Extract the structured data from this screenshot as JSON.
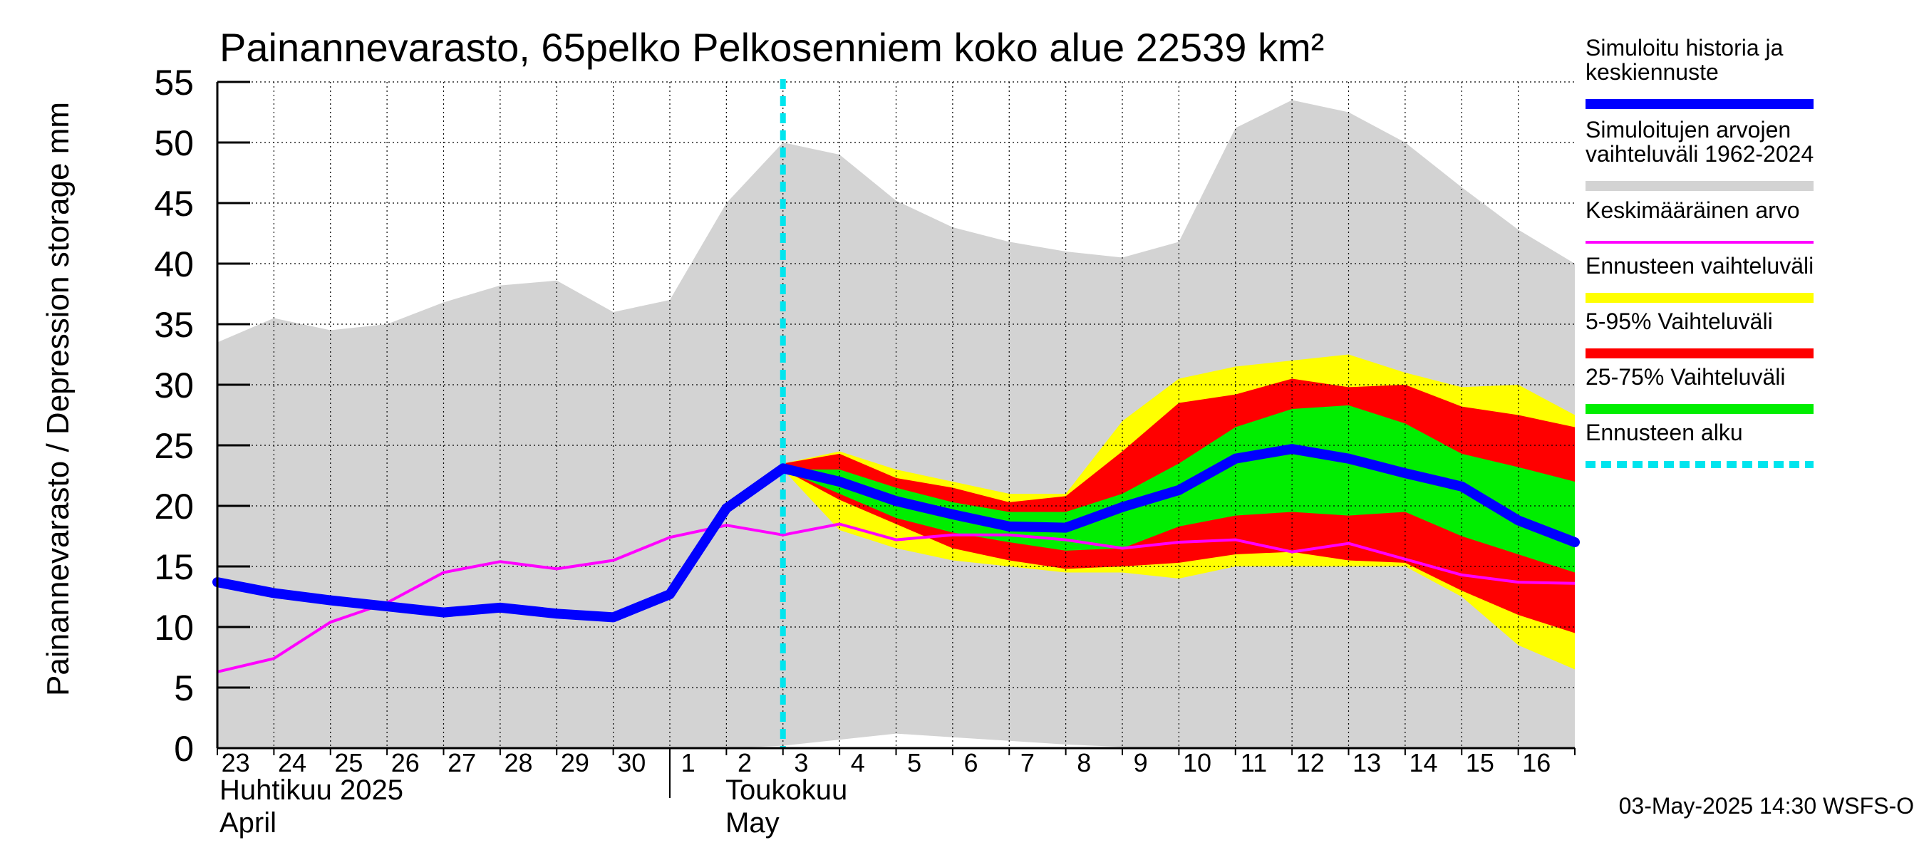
{
  "chart_data": {
    "type": "area",
    "title": "Painannevarasto, 65pelko Pelkosenniem koko alue 22539 km²",
    "ylabel": "Painannevarasto / Depression storage    mm",
    "ylim": [
      0,
      55
    ],
    "yticks": [
      "0",
      "5",
      "10",
      "15",
      "20",
      "25",
      "30",
      "35",
      "40",
      "45",
      "50",
      "55"
    ],
    "xlim": [
      0,
      24
    ],
    "xticks": [
      "23",
      "24",
      "25",
      "26",
      "27",
      "28",
      "29",
      "30",
      "1",
      "2",
      "3",
      "4",
      "5",
      "6",
      "7",
      "8",
      "9",
      "10",
      "11",
      "12",
      "13",
      "14",
      "15",
      "16"
    ],
    "month_labels": {
      "april_fi": "Huhtikuu  2025",
      "april_en": "April",
      "may_fi": "Toukokuu",
      "may_en": "May"
    },
    "grid": true,
    "legend_position": "right",
    "forecast_start_x": 10,
    "timestamp": "03-May-2025 14:30 WSFS-O",
    "colors": {
      "history": "#0000ff",
      "sim_range": "#d3d3d3",
      "mean": "#ff00ff",
      "forecast_range": "#ffff00",
      "range_5_95": "#ff0000",
      "range_25_75": "#00ee00",
      "forecast_start": "#00e5ee"
    },
    "legend": [
      {
        "label": "Simuloitu historia ja keskiennuste",
        "color": "#0000ff",
        "style": "solid"
      },
      {
        "label": "Simuloitujen arvojen vaihteluväli 1962-2024",
        "color": "#d3d3d3",
        "style": "solid"
      },
      {
        "label": "Keskimääräinen arvo",
        "color": "#ff00ff",
        "style": "thin"
      },
      {
        "label": "Ennusteen vaihteluväli",
        "color": "#ffff00",
        "style": "solid"
      },
      {
        "label": "5-95% Vaihteluväli",
        "color": "#ff0000",
        "style": "solid"
      },
      {
        "label": "25-75% Vaihteluväli",
        "color": "#00ee00",
        "style": "solid"
      },
      {
        "label": "Ennusteen alku",
        "color": "#00e5ee",
        "style": "dashed"
      }
    ],
    "series": {
      "sim_range_upper": {
        "x": [
          0,
          1,
          2,
          3,
          4,
          5,
          6,
          7,
          8,
          9,
          10,
          11,
          12,
          13,
          14,
          15,
          16,
          17,
          18,
          19,
          20,
          21,
          22,
          23,
          24
        ],
        "y": [
          33.5,
          35.5,
          34.5,
          35,
          36.8,
          38.2,
          38.6,
          36,
          37,
          45,
          50,
          49,
          45.2,
          43,
          41.8,
          41,
          40.5,
          41.8,
          51.2,
          53.5,
          52.5,
          50,
          46.3,
          42.8,
          40
        ]
      },
      "sim_range_lower": {
        "x": [
          0,
          1,
          2,
          3,
          4,
          5,
          6,
          7,
          8,
          9,
          10,
          11,
          12,
          13,
          14,
          15,
          16,
          17,
          18,
          19,
          20,
          21,
          22,
          23,
          24
        ],
        "y": [
          0,
          0,
          0,
          0,
          0,
          0,
          0,
          0,
          0,
          0,
          0.2,
          0.7,
          1.2,
          0.9,
          0.6,
          0.3,
          0.1,
          0,
          0,
          0,
          0,
          0,
          0,
          0,
          0
        ]
      },
      "forecast_range_upper": {
        "x": [
          10,
          11,
          12,
          13,
          14,
          15,
          16,
          17,
          18,
          19,
          20,
          21,
          22,
          23,
          24
        ],
        "y": [
          23.5,
          24.5,
          23,
          22,
          21,
          21,
          27,
          30.5,
          31.5,
          32,
          32.5,
          31,
          29.8,
          30,
          27.5
        ]
      },
      "forecast_range_lower": {
        "x": [
          10,
          11,
          12,
          13,
          14,
          15,
          16,
          17,
          18,
          19,
          20,
          21,
          22,
          23,
          24
        ],
        "y": [
          23,
          18,
          16.5,
          15.5,
          15,
          14.5,
          14.5,
          14,
          15,
          15,
          15,
          15,
          12.5,
          8.5,
          6.5
        ]
      },
      "range_5_95_upper": {
        "x": [
          10,
          11,
          12,
          13,
          14,
          15,
          16,
          17,
          18,
          19,
          20,
          21,
          22,
          23,
          24
        ],
        "y": [
          23.5,
          24.3,
          22.3,
          21.5,
          20.3,
          20.8,
          24.5,
          28.5,
          29.2,
          30.5,
          29.8,
          30,
          28.2,
          27.5,
          26.5
        ]
      },
      "range_5_95_lower": {
        "x": [
          10,
          11,
          12,
          13,
          14,
          15,
          16,
          17,
          18,
          19,
          20,
          21,
          22,
          23,
          24
        ],
        "y": [
          23,
          20.5,
          18.5,
          16.5,
          15.5,
          14.8,
          15,
          15.3,
          16,
          16.2,
          15.5,
          15.3,
          13,
          11,
          9.5
        ]
      },
      "range_25_75_upper": {
        "x": [
          10,
          11,
          12,
          13,
          14,
          15,
          16,
          17,
          18,
          19,
          20,
          21,
          22,
          23,
          24
        ],
        "y": [
          23,
          23,
          21.5,
          20.3,
          19.5,
          19.5,
          21,
          23.5,
          26.5,
          28,
          28.3,
          26.8,
          24.3,
          23.2,
          22
        ]
      },
      "range_25_75_lower": {
        "x": [
          10,
          11,
          12,
          13,
          14,
          15,
          16,
          17,
          18,
          19,
          20,
          21,
          22,
          23,
          24
        ],
        "y": [
          23,
          21,
          19,
          17.8,
          17,
          16.3,
          16.5,
          18.3,
          19.2,
          19.5,
          19.2,
          19.5,
          17.5,
          16,
          14.5
        ]
      },
      "history_forecast": {
        "x": [
          0,
          1,
          2,
          3,
          4,
          5,
          6,
          7,
          8,
          9,
          10,
          11,
          12,
          13,
          14,
          15,
          16,
          17,
          18,
          19,
          20,
          21,
          22,
          23,
          24
        ],
        "y": [
          13.7,
          12.8,
          12.2,
          11.7,
          11.2,
          11.6,
          11.1,
          10.8,
          12.7,
          19.8,
          23.1,
          22,
          20.4,
          19.3,
          18.3,
          18.2,
          19.9,
          21.3,
          23.9,
          24.7,
          23.9,
          22.7,
          21.6,
          18.8,
          17
        ]
      },
      "mean": {
        "x": [
          0,
          1,
          2,
          3,
          4,
          5,
          6,
          7,
          8,
          9,
          10,
          11,
          12,
          13,
          14,
          15,
          16,
          17,
          18,
          19,
          20,
          21,
          22,
          23,
          24
        ],
        "y": [
          6.3,
          7.4,
          10.4,
          12,
          14.5,
          15.4,
          14.8,
          15.5,
          17.4,
          18.4,
          17.6,
          18.5,
          17.2,
          17.6,
          17.6,
          17.2,
          16.5,
          17,
          17.2,
          16.2,
          16.9,
          15.6,
          14.3,
          13.7,
          13.6
        ]
      }
    }
  }
}
